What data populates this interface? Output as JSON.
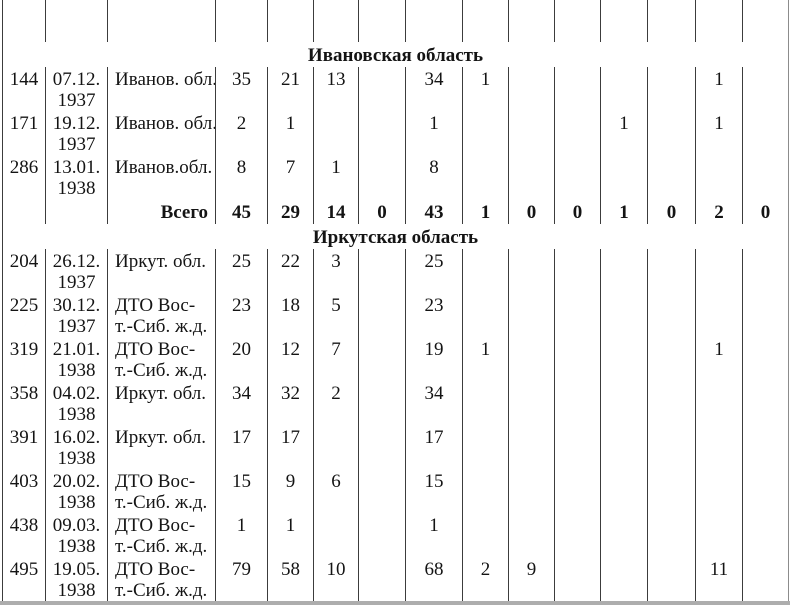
{
  "document": {
    "value_column_count": 12,
    "sections": [
      {
        "header": "Ивановская область",
        "rows": [
          {
            "num": "144",
            "date_line1": "07.12.",
            "date_line2": "1937",
            "org_line1": "Иванов. обл.",
            "org_line2": "",
            "values": [
              "35",
              "21",
              "13",
              "",
              "34",
              "1",
              "",
              "",
              "",
              "",
              "1",
              ""
            ]
          },
          {
            "num": "171",
            "date_line1": "19.12.",
            "date_line2": "1937",
            "org_line1": "Иванов. обл.",
            "org_line2": "",
            "values": [
              "2",
              "1",
              "",
              "",
              "1",
              "",
              "",
              "",
              "1",
              "",
              "1",
              ""
            ]
          },
          {
            "num": "286",
            "date_line1": "13.01.",
            "date_line2": "1938",
            "org_line1": "Иванов.обл.",
            "org_line2": "",
            "values": [
              "8",
              "7",
              "1",
              "",
              "8",
              "",
              "",
              "",
              "",
              "",
              "",
              ""
            ]
          }
        ],
        "total": {
          "label": "Всего",
          "values": [
            "45",
            "29",
            "14",
            "0",
            "43",
            "1",
            "0",
            "0",
            "1",
            "0",
            "2",
            "0"
          ]
        }
      },
      {
        "header": "Иркутская область",
        "rows": [
          {
            "num": "204",
            "date_line1": "26.12.",
            "date_line2": "1937",
            "org_line1": "Иркут. обл.",
            "org_line2": "",
            "values": [
              "25",
              "22",
              "3",
              "",
              "25",
              "",
              "",
              "",
              "",
              "",
              "",
              ""
            ]
          },
          {
            "num": "225",
            "date_line1": "30.12.",
            "date_line2": "1937",
            "org_line1": "ДТО Вос-",
            "org_line2": "т.-Сиб. ж.д.",
            "values": [
              "23",
              "18",
              "5",
              "",
              "23",
              "",
              "",
              "",
              "",
              "",
              "",
              ""
            ]
          },
          {
            "num": "319",
            "date_line1": "21.01.",
            "date_line2": "1938",
            "org_line1": "ДТО Вос-",
            "org_line2": "т.-Сиб. ж.д.",
            "values": [
              "20",
              "12",
              "7",
              "",
              "19",
              "1",
              "",
              "",
              "",
              "",
              "1",
              ""
            ]
          },
          {
            "num": "358",
            "date_line1": "04.02.",
            "date_line2": "1938",
            "org_line1": "Иркут. обл.",
            "org_line2": "",
            "values": [
              "34",
              "32",
              "2",
              "",
              "34",
              "",
              "",
              "",
              "",
              "",
              "",
              ""
            ]
          },
          {
            "num": "391",
            "date_line1": "16.02.",
            "date_line2": "1938",
            "org_line1": "Иркут. обл.",
            "org_line2": "",
            "values": [
              "17",
              "17",
              "",
              "",
              "17",
              "",
              "",
              "",
              "",
              "",
              "",
              ""
            ]
          },
          {
            "num": "403",
            "date_line1": "20.02.",
            "date_line2": "1938",
            "org_line1": "ДТО Вос-",
            "org_line2": "т.-Сиб. ж.д.",
            "values": [
              "15",
              "9",
              "6",
              "",
              "15",
              "",
              "",
              "",
              "",
              "",
              "",
              ""
            ]
          },
          {
            "num": "438",
            "date_line1": "09.03.",
            "date_line2": "1938",
            "org_line1": "ДТО Вос-",
            "org_line2": "т.-Сиб. ж.д.",
            "values": [
              "1",
              "1",
              "",
              "",
              "1",
              "",
              "",
              "",
              "",
              "",
              "",
              ""
            ]
          },
          {
            "num": "495",
            "date_line1": "19.05.",
            "date_line2": "1938",
            "org_line1": "ДТО Вос-",
            "org_line2": "т.-Сиб. ж.д.",
            "values": [
              "79",
              "58",
              "10",
              "",
              "68",
              "2",
              "9",
              "",
              "",
              "",
              "11",
              ""
            ]
          }
        ],
        "total": null
      }
    ],
    "colors": {
      "line": "#3c3c3c",
      "outer_right_line": "#8c8c8c",
      "bottom_strip": "#adadad",
      "text": "#141414"
    }
  }
}
